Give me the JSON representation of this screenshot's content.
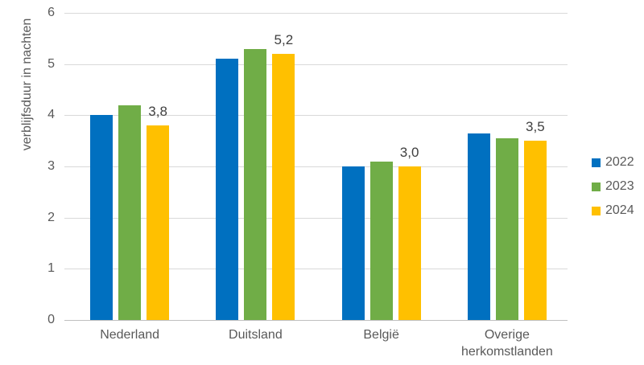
{
  "chart_data": {
    "type": "bar",
    "title": "",
    "xlabel": "",
    "ylabel": "verblijfsduur in nachten",
    "ylim": [
      0,
      6
    ],
    "yticks": [
      "0",
      "1",
      "2",
      "3",
      "4",
      "5",
      "6"
    ],
    "grid": true,
    "legend_position": "right",
    "categories": [
      "Nederland",
      "Duitsland",
      "België",
      "Overige herkomstlanden"
    ],
    "series": [
      {
        "name": "2022",
        "color": "#0070C0",
        "values": [
          4.0,
          5.1,
          3.0,
          3.65
        ]
      },
      {
        "name": "2023",
        "color": "#70AD47",
        "values": [
          4.2,
          5.3,
          3.1,
          3.55
        ]
      },
      {
        "name": "2024",
        "color": "#FFC000",
        "values": [
          3.8,
          5.2,
          3.0,
          3.5
        ],
        "data_labels": [
          "3,8",
          "5,2",
          "3,0",
          "3,5"
        ]
      }
    ]
  },
  "colors": {
    "background": "#ffffff",
    "gridline": "#d9d9d9",
    "axis_line": "#bfbfbf",
    "tick_text": "#595959",
    "data_label_text": "#404040"
  }
}
